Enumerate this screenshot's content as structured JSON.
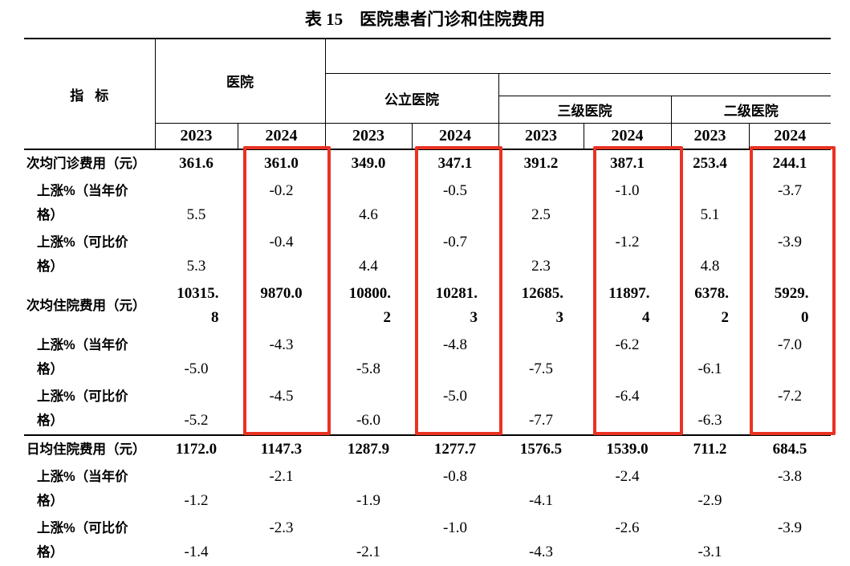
{
  "page_title": "表 15　医院患者门诊和住院费用",
  "table": {
    "indicator_header": "指标",
    "group_headers": {
      "hospital": "医院",
      "public": "公立医院",
      "tertiary": "三级医院",
      "secondary": "二级医院"
    },
    "year_columns": [
      "2023",
      "2024",
      "2023",
      "2024",
      "2023",
      "2024",
      "2023",
      "2024"
    ],
    "sections": [
      {
        "rows": [
          {
            "label": "次均门诊费用（元）",
            "indent": false,
            "emphasis": true,
            "values": [
              "361.6",
              "361.0",
              "349.0",
              "347.1",
              "391.2",
              "387.1",
              "253.4",
              "244.1"
            ]
          },
          {
            "label": "上涨%（当年价格）",
            "indent": true,
            "emphasis": false,
            "values": [
              "5.5",
              "-0.2",
              "4.6",
              "-0.5",
              "2.5",
              "-1.0",
              "5.1",
              "-3.7"
            ]
          },
          {
            "label": "上涨%（可比价格）",
            "indent": true,
            "emphasis": false,
            "values": [
              "5.3",
              "-0.4",
              "4.4",
              "-0.7",
              "2.3",
              "-1.2",
              "4.8",
              "-3.9"
            ]
          },
          {
            "label": "次均住院费用（元）",
            "indent": false,
            "emphasis": true,
            "values": [
              "10315.8",
              "9870.0",
              "10800.2",
              "10281.3",
              "12685.3",
              "11897.4",
              "6378.2",
              "5929.0"
            ]
          },
          {
            "label": "上涨%（当年价格）",
            "indent": true,
            "emphasis": false,
            "values": [
              "-5.0",
              "-4.3",
              "-5.8",
              "-4.8",
              "-7.5",
              "-6.2",
              "-6.1",
              "-7.0"
            ]
          },
          {
            "label": "上涨%（可比价格）",
            "indent": true,
            "emphasis": false,
            "values": [
              "-5.2",
              "-4.5",
              "-6.0",
              "-5.0",
              "-7.7",
              "-6.4",
              "-6.3",
              "-7.2"
            ]
          }
        ]
      },
      {
        "rows": [
          {
            "label": "日均住院费用（元）",
            "indent": false,
            "emphasis": true,
            "values": [
              "1172.0",
              "1147.3",
              "1287.9",
              "1277.7",
              "1576.5",
              "1539.0",
              "711.2",
              "684.5"
            ]
          },
          {
            "label": "上涨%（当年价格）",
            "indent": true,
            "emphasis": false,
            "values": [
              "-1.2",
              "-2.1",
              "-1.9",
              "-0.8",
              "-4.1",
              "-2.4",
              "-2.9",
              "-3.8"
            ]
          },
          {
            "label": "上涨%（可比价格）",
            "indent": true,
            "emphasis": false,
            "values": [
              "-1.4",
              "-2.3",
              "-2.1",
              "-1.0",
              "-4.3",
              "-2.6",
              "-3.1",
              "-3.9"
            ]
          }
        ]
      }
    ],
    "highlight": {
      "color": "#ea3223",
      "highlighted_year": "2024"
    }
  }
}
